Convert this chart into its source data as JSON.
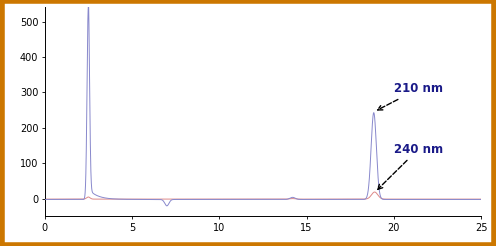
{
  "xlim": [
    0,
    25
  ],
  "ylim": [
    -50,
    540
  ],
  "yticks": [
    0,
    100,
    200,
    300,
    400,
    500
  ],
  "xticks": [
    0,
    5,
    10,
    15,
    20,
    25
  ],
  "background_color": "#ffffff",
  "border_color": "#cc7700",
  "line_210_color": "#8888cc",
  "line_240_color": "#dd8888",
  "annotation_210": "210 nm",
  "annotation_240": "240 nm",
  "annotation_color": "#1a1a88",
  "annotation_fontsize": 8.5,
  "figsize": [
    4.96,
    2.46
  ],
  "dpi": 100
}
